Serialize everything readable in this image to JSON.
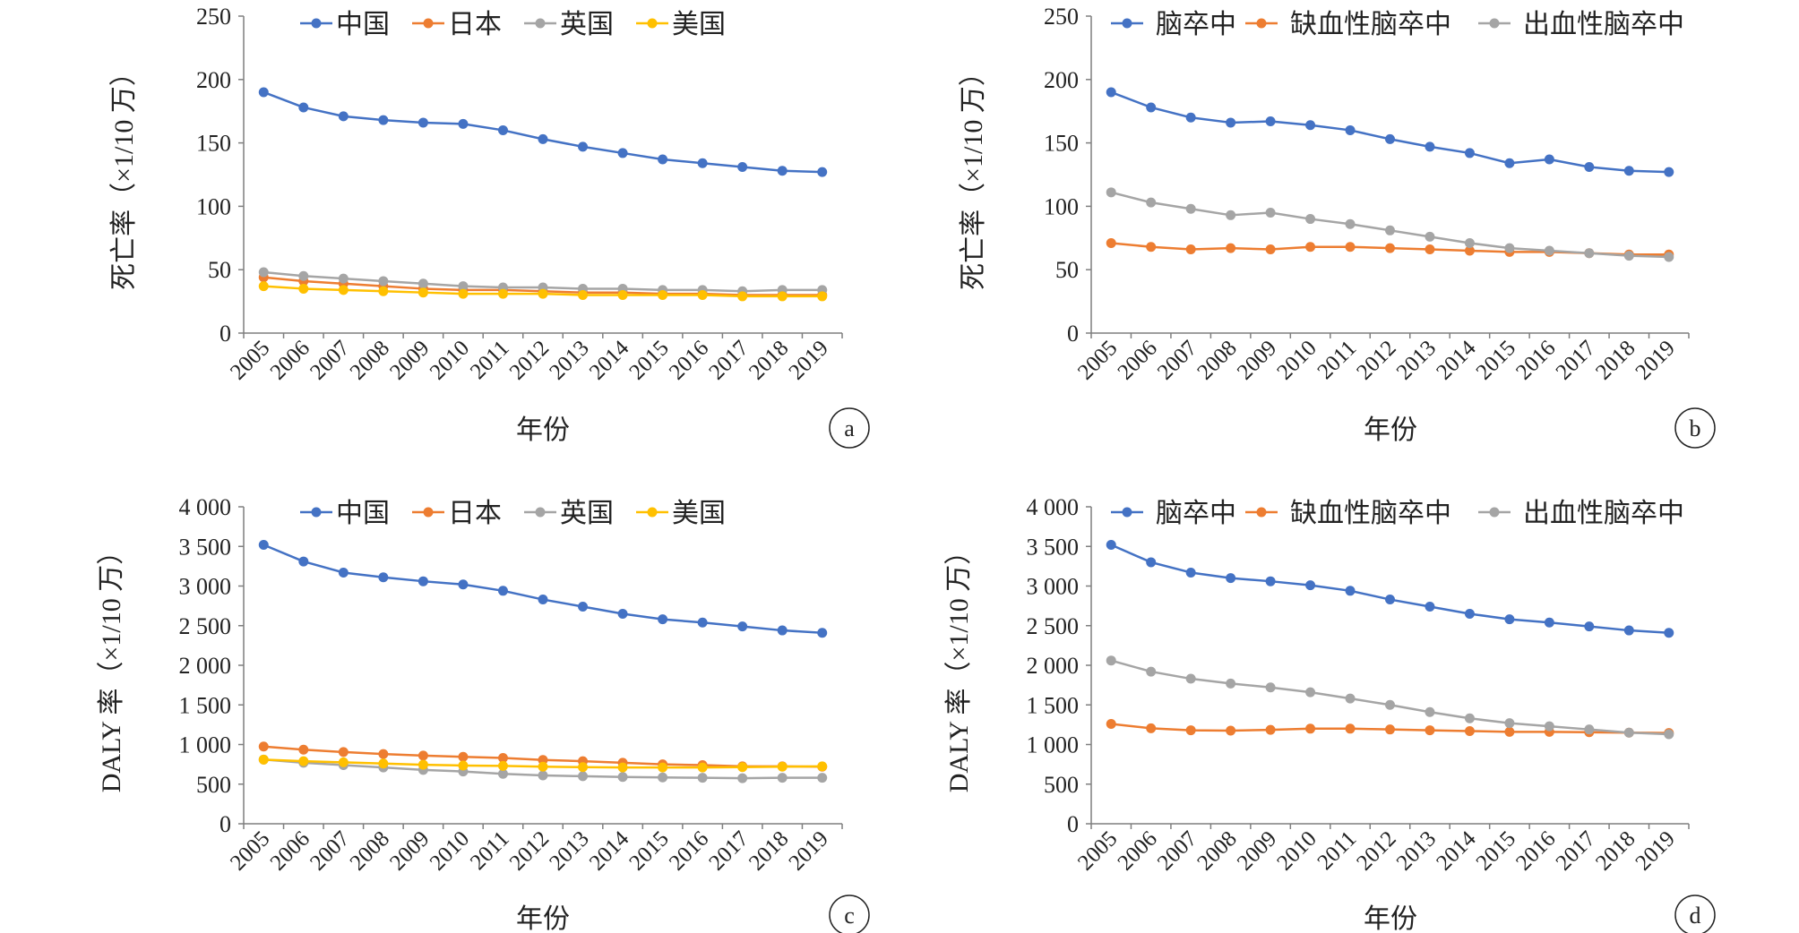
{
  "colors": {
    "blue": "#4472C4",
    "orange": "#ED7D31",
    "gray": "#A5A5A5",
    "yellow": "#FFC000",
    "axis": "#7F7F7F"
  },
  "chart_data": [
    {
      "type": "line",
      "panel": "a",
      "xlabel": "年份",
      "ylabel": "死亡率（×1/10 万）",
      "ylim": [
        0,
        250
      ],
      "yticks": [
        0,
        50,
        100,
        150,
        200,
        250
      ],
      "ytick_labels": [
        "0",
        "50",
        "100",
        "150",
        "200",
        "250"
      ],
      "categories": [
        "2005",
        "2006",
        "2007",
        "2008",
        "2009",
        "2010",
        "2011",
        "2012",
        "2013",
        "2014",
        "2015",
        "2016",
        "2017",
        "2018",
        "2019"
      ],
      "legend_position": "top",
      "grid": false,
      "series": [
        {
          "name": "中国",
          "color": "#4472C4",
          "values": [
            190,
            178,
            171,
            168,
            166,
            165,
            160,
            153,
            147,
            142,
            137,
            134,
            131,
            128,
            127
          ]
        },
        {
          "name": "日本",
          "color": "#ED7D31",
          "values": [
            44,
            41,
            39,
            37,
            35,
            34,
            34,
            33,
            32,
            32,
            31,
            31,
            30,
            30,
            30
          ]
        },
        {
          "name": "英国",
          "color": "#A5A5A5",
          "values": [
            48,
            45,
            43,
            41,
            39,
            37,
            36,
            36,
            35,
            35,
            34,
            34,
            33,
            34,
            34
          ]
        },
        {
          "name": "美国",
          "color": "#FFC000",
          "values": [
            37,
            35,
            34,
            33,
            32,
            31,
            31,
            31,
            30,
            30,
            30,
            30,
            29,
            29,
            29
          ]
        }
      ]
    },
    {
      "type": "line",
      "panel": "b",
      "xlabel": "年份",
      "ylabel": "死亡率（×1/10 万）",
      "ylim": [
        0,
        250
      ],
      "yticks": [
        0,
        50,
        100,
        150,
        200,
        250
      ],
      "ytick_labels": [
        "0",
        "50",
        "100",
        "150",
        "200",
        "250"
      ],
      "categories": [
        "2005",
        "2006",
        "2007",
        "2008",
        "2009",
        "2010",
        "2011",
        "2012",
        "2013",
        "2014",
        "2015",
        "2016",
        "2017",
        "2018",
        "2019"
      ],
      "legend_position": "top",
      "grid": false,
      "series": [
        {
          "name": "脑卒中",
          "color": "#4472C4",
          "values": [
            190,
            178,
            170,
            166,
            167,
            164,
            160,
            153,
            147,
            142,
            134,
            137,
            131,
            128,
            127
          ]
        },
        {
          "name": "缺血性脑卒中",
          "color": "#ED7D31",
          "values": [
            71,
            68,
            66,
            67,
            66,
            68,
            68,
            67,
            66,
            65,
            64,
            64,
            63,
            62,
            62
          ]
        },
        {
          "name": "出血性脑卒中",
          "color": "#A5A5A5",
          "values": [
            111,
            103,
            98,
            93,
            95,
            90,
            86,
            81,
            76,
            71,
            67,
            65,
            63,
            61,
            60
          ]
        }
      ]
    },
    {
      "type": "line",
      "panel": "c",
      "xlabel": "年份",
      "ylabel": "DALY 率（×1/10 万）",
      "ylim": [
        0,
        4000
      ],
      "yticks": [
        0,
        500,
        1000,
        1500,
        2000,
        2500,
        3000,
        3500,
        4000
      ],
      "ytick_labels": [
        "0",
        "500",
        "1 000",
        "1 500",
        "2 000",
        "2 500",
        "3 000",
        "3 500",
        "4 000"
      ],
      "categories": [
        "2005",
        "2006",
        "2007",
        "2008",
        "2009",
        "2010",
        "2011",
        "2012",
        "2013",
        "2014",
        "2015",
        "2016",
        "2017",
        "2018",
        "2019"
      ],
      "legend_position": "top",
      "grid": false,
      "series": [
        {
          "name": "中国",
          "color": "#4472C4",
          "values": [
            3520,
            3310,
            3170,
            3110,
            3060,
            3020,
            2940,
            2830,
            2740,
            2650,
            2580,
            2540,
            2490,
            2440,
            2410
          ]
        },
        {
          "name": "日本",
          "color": "#ED7D31",
          "values": [
            975,
            935,
            905,
            880,
            860,
            845,
            830,
            805,
            790,
            770,
            750,
            740,
            725,
            725,
            720
          ]
        },
        {
          "name": "英国",
          "color": "#A5A5A5",
          "values": [
            810,
            770,
            740,
            710,
            680,
            660,
            630,
            610,
            600,
            590,
            585,
            580,
            575,
            580,
            580
          ]
        },
        {
          "name": "美国",
          "color": "#FFC000",
          "values": [
            810,
            790,
            775,
            760,
            745,
            735,
            730,
            720,
            715,
            710,
            710,
            710,
            715,
            720,
            725
          ]
        }
      ]
    },
    {
      "type": "line",
      "panel": "d",
      "xlabel": "年份",
      "ylabel": "DALY 率（×1/10 万）",
      "ylim": [
        0,
        4000
      ],
      "yticks": [
        0,
        500,
        1000,
        1500,
        2000,
        2500,
        3000,
        3500,
        4000
      ],
      "ytick_labels": [
        "0",
        "500",
        "1 000",
        "1 500",
        "2 000",
        "2 500",
        "3 000",
        "3 500",
        "4 000"
      ],
      "categories": [
        "2005",
        "2006",
        "2007",
        "2008",
        "2009",
        "2010",
        "2011",
        "2012",
        "2013",
        "2014",
        "2015",
        "2016",
        "2017",
        "2018",
        "2019"
      ],
      "legend_position": "top",
      "grid": false,
      "series": [
        {
          "name": "脑卒中",
          "color": "#4472C4",
          "values": [
            3520,
            3300,
            3170,
            3100,
            3060,
            3010,
            2940,
            2830,
            2740,
            2650,
            2580,
            2540,
            2490,
            2440,
            2410
          ]
        },
        {
          "name": "缺血性脑卒中",
          "color": "#ED7D31",
          "values": [
            1260,
            1205,
            1180,
            1175,
            1185,
            1200,
            1200,
            1190,
            1180,
            1170,
            1160,
            1160,
            1155,
            1150,
            1145
          ]
        },
        {
          "name": "出血性脑卒中",
          "color": "#A5A5A5",
          "values": [
            2060,
            1920,
            1830,
            1770,
            1720,
            1660,
            1580,
            1500,
            1410,
            1330,
            1270,
            1230,
            1190,
            1150,
            1130
          ]
        }
      ]
    }
  ]
}
